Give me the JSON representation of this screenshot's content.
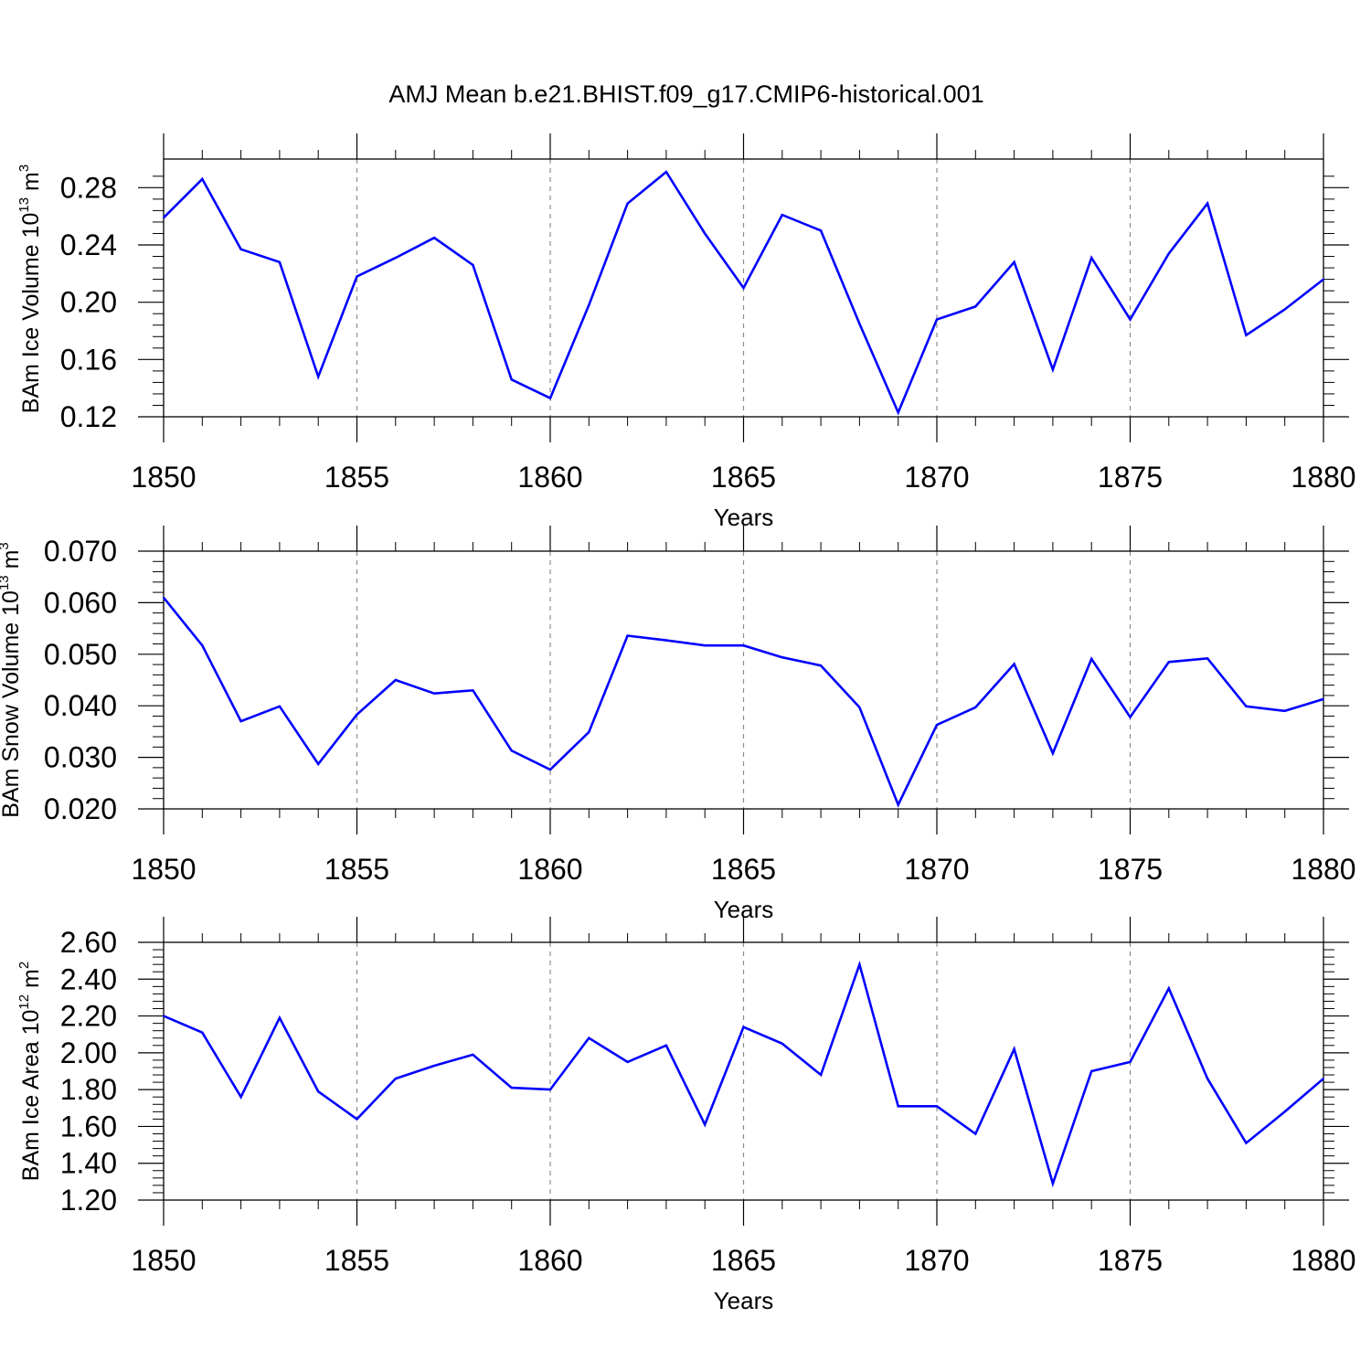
{
  "title": "AMJ Mean b.e21.BHIST.f09_g17.CMIP6-historical.001",
  "line_color": "#0000ff",
  "chart_data": [
    {
      "type": "line",
      "xlabel": "Years",
      "ylabel": {
        "base": "BAm Ice Volume 10",
        "exp": "13",
        "unit": " m",
        "unit_exp": "3"
      },
      "xlim": [
        1850,
        1880
      ],
      "ylim": [
        0.12,
        0.3
      ],
      "x_ticks": [
        1850,
        1855,
        1860,
        1865,
        1870,
        1875,
        1880
      ],
      "x_tick_labels": [
        "1850",
        "1855",
        "1860",
        "1865",
        "1870",
        "1875",
        "1880"
      ],
      "y_ticks": [
        0.12,
        0.16,
        0.2,
        0.24,
        0.28
      ],
      "y_tick_labels": [
        "0.12",
        "0.16",
        "0.20",
        "0.24",
        "0.28"
      ],
      "grid": "vertical dashed at major x ticks",
      "x": [
        1850,
        1851,
        1852,
        1853,
        1854,
        1855,
        1856,
        1857,
        1858,
        1859,
        1860,
        1861,
        1862,
        1863,
        1864,
        1865,
        1866,
        1867,
        1868,
        1869,
        1870,
        1871,
        1872,
        1873,
        1874,
        1875,
        1876,
        1877,
        1878,
        1879,
        1880
      ],
      "values": [
        0.259,
        0.286,
        0.237,
        0.228,
        0.148,
        0.218,
        0.231,
        0.245,
        0.226,
        0.146,
        0.133,
        0.198,
        0.269,
        0.291,
        0.248,
        0.21,
        0.261,
        0.25,
        0.185,
        0.123,
        0.188,
        0.197,
        0.228,
        0.153,
        0.231,
        0.188,
        0.234,
        0.269,
        0.177,
        0.195,
        0.216
      ]
    },
    {
      "type": "line",
      "xlabel": "Years",
      "ylabel": {
        "base": "BAm Snow Volume 10",
        "exp": "13",
        "unit": " m",
        "unit_exp": "3"
      },
      "xlim": [
        1850,
        1880
      ],
      "ylim": [
        0.02,
        0.07
      ],
      "x_ticks": [
        1850,
        1855,
        1860,
        1865,
        1870,
        1875,
        1880
      ],
      "x_tick_labels": [
        "1850",
        "1855",
        "1860",
        "1865",
        "1870",
        "1875",
        "1880"
      ],
      "y_ticks": [
        0.02,
        0.03,
        0.04,
        0.05,
        0.06,
        0.07
      ],
      "y_tick_labels": [
        "0.020",
        "0.030",
        "0.040",
        "0.050",
        "0.060",
        "0.070"
      ],
      "grid": "vertical dashed at major x ticks",
      "x": [
        1850,
        1851,
        1852,
        1853,
        1854,
        1855,
        1856,
        1857,
        1858,
        1859,
        1860,
        1861,
        1862,
        1863,
        1864,
        1865,
        1866,
        1867,
        1868,
        1869,
        1870,
        1871,
        1872,
        1873,
        1874,
        1875,
        1876,
        1877,
        1878,
        1879,
        1880
      ],
      "values": [
        0.061,
        0.0517,
        0.037,
        0.0399,
        0.0287,
        0.0383,
        0.045,
        0.0424,
        0.043,
        0.0313,
        0.0276,
        0.0349,
        0.0536,
        0.0527,
        0.0517,
        0.0517,
        0.0494,
        0.0478,
        0.0397,
        0.0208,
        0.0363,
        0.0397,
        0.0481,
        0.0308,
        0.0491,
        0.0378,
        0.0485,
        0.0492,
        0.0399,
        0.039,
        0.0413
      ]
    },
    {
      "type": "line",
      "xlabel": "Years",
      "ylabel": {
        "base": "BAm Ice Area 10",
        "exp": "12",
        "unit": " m",
        "unit_exp": "2"
      },
      "xlim": [
        1850,
        1880
      ],
      "ylim": [
        1.2,
        2.6
      ],
      "x_ticks": [
        1850,
        1855,
        1860,
        1865,
        1870,
        1875,
        1880
      ],
      "x_tick_labels": [
        "1850",
        "1855",
        "1860",
        "1865",
        "1870",
        "1875",
        "1880"
      ],
      "y_ticks": [
        1.2,
        1.4,
        1.6,
        1.8,
        2.0,
        2.2,
        2.4,
        2.6
      ],
      "y_tick_labels": [
        "1.20",
        "1.40",
        "1.60",
        "1.80",
        "2.00",
        "2.20",
        "2.40",
        "2.60"
      ],
      "grid": "vertical dashed at major x ticks",
      "x": [
        1850,
        1851,
        1852,
        1853,
        1854,
        1855,
        1856,
        1857,
        1858,
        1859,
        1860,
        1861,
        1862,
        1863,
        1864,
        1865,
        1866,
        1867,
        1868,
        1869,
        1870,
        1871,
        1872,
        1873,
        1874,
        1875,
        1876,
        1877,
        1878,
        1879,
        1880
      ],
      "values": [
        2.2,
        2.11,
        1.76,
        2.19,
        1.79,
        1.64,
        1.86,
        1.93,
        1.99,
        1.81,
        1.8,
        2.08,
        1.95,
        2.04,
        1.61,
        2.14,
        2.05,
        1.88,
        2.48,
        1.71,
        1.71,
        1.56,
        2.02,
        1.29,
        1.9,
        1.95,
        2.35,
        1.86,
        1.51,
        1.68,
        1.86
      ]
    }
  ]
}
